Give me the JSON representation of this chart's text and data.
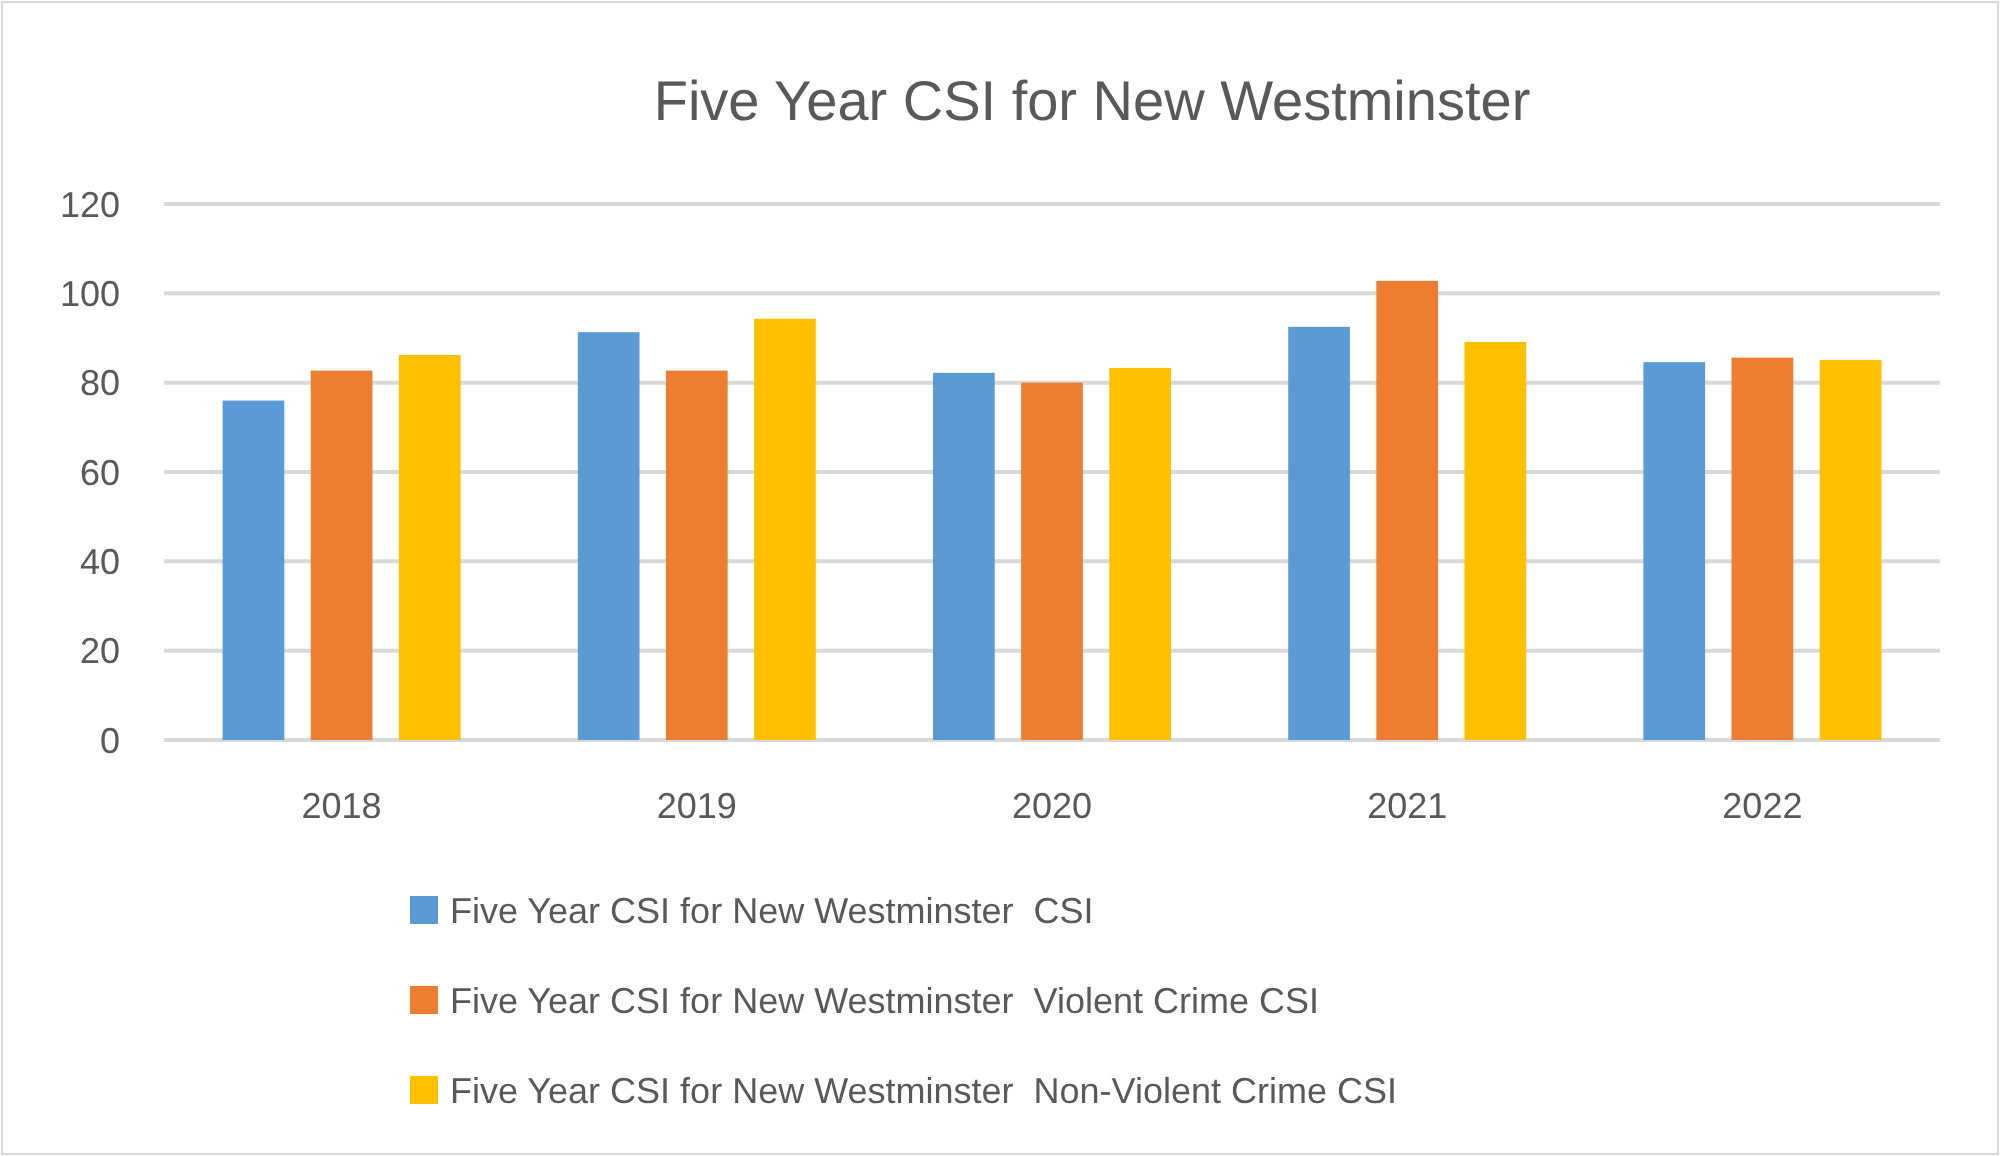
{
  "chart_data": {
    "type": "bar",
    "title": "Five Year CSI for New Westminster",
    "categories": [
      "2018",
      "2019",
      "2020",
      "2021",
      "2022"
    ],
    "series": [
      {
        "name": "Five Year CSI for New Westminster  CSI",
        "color": "#5b9bd5",
        "values": [
          76.0,
          91.3,
          82.2,
          92.5,
          84.6
        ]
      },
      {
        "name": "Five Year CSI for New Westminster  Violent Crime CSI",
        "color": "#ed7d31",
        "values": [
          82.7,
          82.7,
          80.0,
          102.8,
          85.6
        ]
      },
      {
        "name": "Five Year CSI for New Westminster  Non-Violent Crime CSI",
        "color": "#ffc000",
        "values": [
          86.2,
          94.3,
          83.3,
          89.1,
          85.1
        ]
      }
    ],
    "ylim": [
      0,
      120
    ],
    "yticks": [
      0,
      20,
      40,
      60,
      80,
      100,
      120
    ],
    "grid": "y",
    "legend": "bottom"
  }
}
